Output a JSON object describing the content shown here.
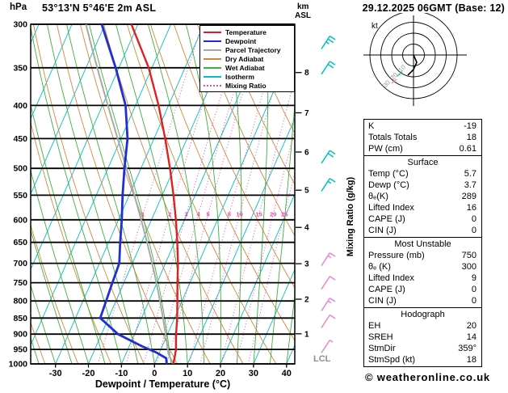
{
  "page": {
    "title": "53°13'N 5°46'E 2m ASL",
    "datetime": "29.12.2025 06GMT (Base: 12)",
    "copyright": "© weatheronline.co.uk"
  },
  "labels": {
    "pressure_unit": "hPa",
    "km": "km",
    "asl": "ASL",
    "x_axis": "Dewpoint / Temperature (°C)",
    "mixing_ratio_axis": "Mixing Ratio (g/kg)",
    "lcl": "LCL",
    "hodograph_kt": "kt"
  },
  "colors": {
    "temperature": "#e02020",
    "dewpoint": "#2030d0",
    "parcel": "#a8a8a8",
    "dry_adiabat": "#d4873a",
    "wet_adiabat": "#3cb03c",
    "isotherm": "#00c0c0",
    "mixing_ratio": "#e650b4",
    "barb_cyan": "#00c0c0",
    "barb_magenta": "#f080d0"
  },
  "legend": [
    {
      "label": "Temperature",
      "color": "#e02020",
      "dotted": false
    },
    {
      "label": "Dewpoint",
      "color": "#2030d0",
      "dotted": false
    },
    {
      "label": "Parcel Trajectory",
      "color": "#a8a8a8",
      "dotted": false
    },
    {
      "label": "Dry Adiabat",
      "color": "#d4873a",
      "dotted": false
    },
    {
      "label": "Wet Adiabat",
      "color": "#3cb03c",
      "dotted": false
    },
    {
      "label": "Isotherm",
      "color": "#00c0c0",
      "dotted": false
    },
    {
      "label": "Mixing Ratio",
      "color": "#e650b4",
      "dotted": true
    }
  ],
  "stats": {
    "indices": [
      {
        "label": "K",
        "value": "-19"
      },
      {
        "label": "Totals Totals",
        "value": "18"
      },
      {
        "label": "PW (cm)",
        "value": "0.61"
      }
    ],
    "sections": [
      {
        "title": "Surface",
        "rows": [
          {
            "label": "Temp (°C)",
            "value": "5.7"
          },
          {
            "label": "Dewp (°C)",
            "value": "3.7"
          },
          {
            "label": "θₑ(K)",
            "value": "289"
          },
          {
            "label": "Lifted Index",
            "value": "16"
          },
          {
            "label": "CAPE (J)",
            "value": "0"
          },
          {
            "label": "CIN (J)",
            "value": "0"
          }
        ]
      },
      {
        "title": "Most Unstable",
        "rows": [
          {
            "label": "Pressure (mb)",
            "value": "750"
          },
          {
            "label": "θₑ (K)",
            "value": "300"
          },
          {
            "label": "Lifted Index",
            "value": "9"
          },
          {
            "label": "CAPE (J)",
            "value": "0"
          },
          {
            "label": "CIN (J)",
            "value": "0"
          }
        ]
      },
      {
        "title": "Hodograph",
        "rows": [
          {
            "label": "EH",
            "value": "20"
          },
          {
            "label": "SREH",
            "value": "14"
          },
          {
            "label": "StmDir",
            "value": "359°"
          },
          {
            "label": "StmSpd (kt)",
            "value": "18"
          }
        ]
      }
    ]
  },
  "hodograph": {
    "rings_kt": [
      10,
      20,
      30,
      40
    ],
    "ring_labels": [
      "10",
      "20",
      "30"
    ],
    "trace": [
      [
        0,
        0
      ],
      [
        4,
        9
      ],
      [
        0,
        18
      ],
      [
        -7,
        25
      ]
    ]
  },
  "chart_data": {
    "type": "line",
    "title": "Skew-T log-P sounding",
    "x_axis": {
      "label": "Dewpoint / Temperature (°C)",
      "range_C": [
        -37.5,
        42.5
      ],
      "ticks": [
        -30,
        -20,
        -10,
        0,
        10,
        20,
        30,
        40
      ]
    },
    "y_axis": {
      "unit": "hPa",
      "log": true,
      "range_hPa": [
        300,
        1000
      ],
      "ticks": [
        300,
        350,
        400,
        450,
        500,
        550,
        600,
        650,
        700,
        750,
        800,
        850,
        900,
        950,
        1000
      ]
    },
    "km_ticks": [
      1,
      2,
      3,
      4,
      5,
      6,
      7,
      8
    ],
    "skew_C_over_full_height": 45,
    "isotherm_step_C": 10,
    "dry_adiabats_thetaK": {
      "from": 230,
      "to": 390,
      "step": 10
    },
    "wet_adiabats_startC": {
      "from": -40,
      "to": 40,
      "step": 5
    },
    "mixing_ratio_g_kg": [
      1,
      2,
      3,
      4,
      5,
      8,
      10,
      15,
      20,
      25
    ],
    "mixing_label_y": 265,
    "series": [
      {
        "name": "Temperature",
        "pressure_hPa": [
          1000,
          975,
          950,
          925,
          900,
          850,
          800,
          750,
          700,
          650,
          600,
          550,
          500,
          450,
          400,
          350,
          300
        ],
        "value_C": [
          5.7,
          5.2,
          4.6,
          3.6,
          2.6,
          0.8,
          -1.4,
          -3.8,
          -6.2,
          -9.2,
          -12.6,
          -16.6,
          -21.2,
          -26.6,
          -33.0,
          -41.0,
          -52.0
        ]
      },
      {
        "name": "Dewpoint",
        "pressure_hPa": [
          1000,
          980,
          960,
          940,
          900,
          850,
          800,
          750,
          700,
          650,
          600,
          550,
          500,
          450,
          400,
          350,
          300
        ],
        "value_C": [
          3.7,
          2.8,
          -1.0,
          -6.0,
          -15.0,
          -22.5,
          -23.0,
          -23.5,
          -24.0,
          -26.5,
          -29.0,
          -32.0,
          -35.0,
          -38.0,
          -43.0,
          -51.0,
          -61.0
        ]
      },
      {
        "name": "Parcel Trajectory",
        "surface_pressure_hPa": 1000,
        "surface_temp_C": 5.7,
        "surface_dewp_C": 3.7
      }
    ],
    "wind_barbs": [
      {
        "pressure_hPa": 320,
        "color": "#00c0c0",
        "full_barbs": 2,
        "half_barb": true
      },
      {
        "pressure_hPa": 350,
        "color": "#00c0c0",
        "full_barbs": 2,
        "half_barb": false
      },
      {
        "pressure_hPa": 480,
        "color": "#00c0c0",
        "full_barbs": 2,
        "half_barb": false
      },
      {
        "pressure_hPa": 530,
        "color": "#00c0c0",
        "full_barbs": 1,
        "half_barb": true
      },
      {
        "pressure_hPa": 690,
        "color": "#f080d0",
        "full_barbs": 1,
        "half_barb": true
      },
      {
        "pressure_hPa": 750,
        "color": "#f080d0",
        "full_barbs": 1,
        "half_barb": false
      },
      {
        "pressure_hPa": 810,
        "color": "#f080d0",
        "full_barbs": 1,
        "half_barb": true
      },
      {
        "pressure_hPa": 860,
        "color": "#f080d0",
        "full_barbs": 1,
        "half_barb": false
      },
      {
        "pressure_hPa": 940,
        "color": "#f080d0",
        "full_barbs": 0,
        "half_barb": true
      }
    ]
  }
}
